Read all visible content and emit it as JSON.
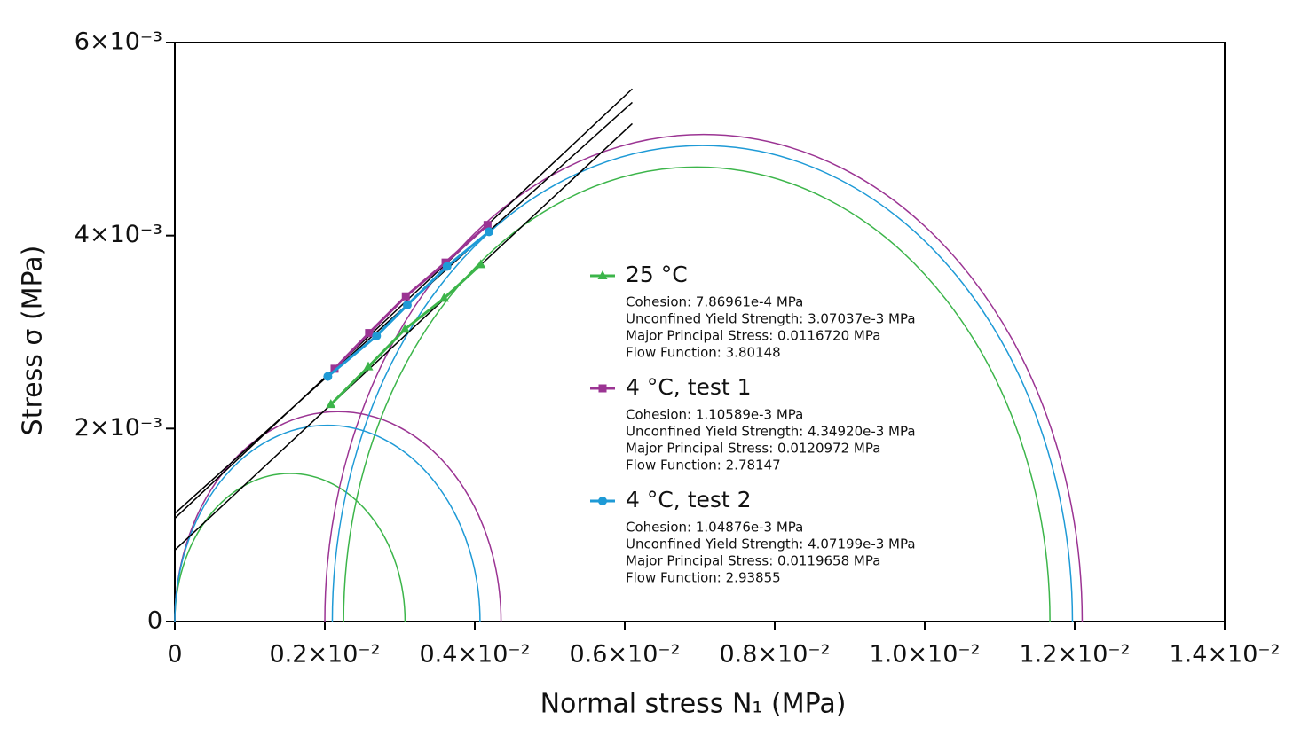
{
  "chart_data": {
    "type": "mohr",
    "x_label": "Normal stress N₁ (MPa)",
    "y_label": "Stress σ (MPa)",
    "xlim": [
      0,
      0.014
    ],
    "ylim": [
      0,
      0.006
    ],
    "xticks": [
      0,
      {
        "value": 0.002,
        "label": "0.2×10⁻²"
      },
      {
        "value": 0.004,
        "label": "0.4×10⁻²"
      },
      {
        "value": 0.006,
        "label": "0.6×10⁻²"
      },
      {
        "value": 0.008,
        "label": "0.8×10⁻²"
      },
      {
        "value": 0.01,
        "label": "1.0×10⁻²"
      },
      {
        "value": 0.012,
        "label": "1.2×10⁻²"
      },
      {
        "value": 0.014,
        "label": "1.4×10⁻²"
      }
    ],
    "yticks": [
      0,
      {
        "value": 0.002,
        "label": "2×10⁻³"
      },
      {
        "value": 0.004,
        "label": "4×10⁻³"
      },
      {
        "value": 0.006,
        "label": "6×10⁻³"
      }
    ],
    "series": [
      {
        "name": "25 °C",
        "color": "#3cb54a",
        "marker": "triangle",
        "x": [
          0.00208,
          0.00258,
          0.00307,
          0.00359,
          0.00408
        ],
        "values": [
          0.00225,
          0.00264,
          0.00303,
          0.00335,
          0.0037
        ],
        "circles": [
          [
            0,
            0.00307
          ],
          [
            0.00225,
            0.01167
          ]
        ],
        "fit_x": [
          0,
          0.0061
        ],
        "fit_y": [
          0.00074,
          0.00516
        ],
        "details": [
          "Cohesion: 7.86961e-4 MPa",
          "Unconfined Yield Strength: 3.07037e-3 MPa",
          "Major Principal Stress: 0.0116720 MPa",
          "Flow Function: 3.80148"
        ]
      },
      {
        "name": "4 °C, test 1",
        "color": "#9b3493",
        "marker": "square",
        "x": [
          0.00213,
          0.00259,
          0.00308,
          0.00361,
          0.00417
        ],
        "values": [
          0.00262,
          0.00299,
          0.00337,
          0.00372,
          0.00411
        ],
        "circles": [
          [
            0,
            0.00435
          ],
          [
            0.002,
            0.0121
          ]
        ],
        "fit_x": [
          0,
          0.0061
        ],
        "fit_y": [
          0.00107,
          0.00552
        ],
        "details": [
          "Cohesion: 1.10589e-3 MPa",
          "Unconfined Yield Strength: 4.34920e-3 MPa",
          "Major Principal Stress: 0.0120972 MPa",
          "Flow Function: 2.78147"
        ]
      },
      {
        "name": "4 °C, test 2",
        "color": "#1e9ad6",
        "marker": "circle",
        "x": [
          0.00204,
          0.00269,
          0.0031,
          0.00363,
          0.00419
        ],
        "values": [
          0.00254,
          0.00296,
          0.00328,
          0.00368,
          0.00404
        ],
        "circles": [
          [
            0,
            0.00407
          ],
          [
            0.0021,
            0.01197
          ]
        ],
        "fit_x": [
          0,
          0.0061
        ],
        "fit_y": [
          0.00112,
          0.00538
        ],
        "details": [
          "Cohesion: 1.04876e-3 MPa",
          "Unconfined Yield Strength: 4.07199e-3 MPa",
          "Major Principal Stress: 0.0119658 MPa",
          "Flow Function: 2.93855"
        ]
      }
    ]
  }
}
